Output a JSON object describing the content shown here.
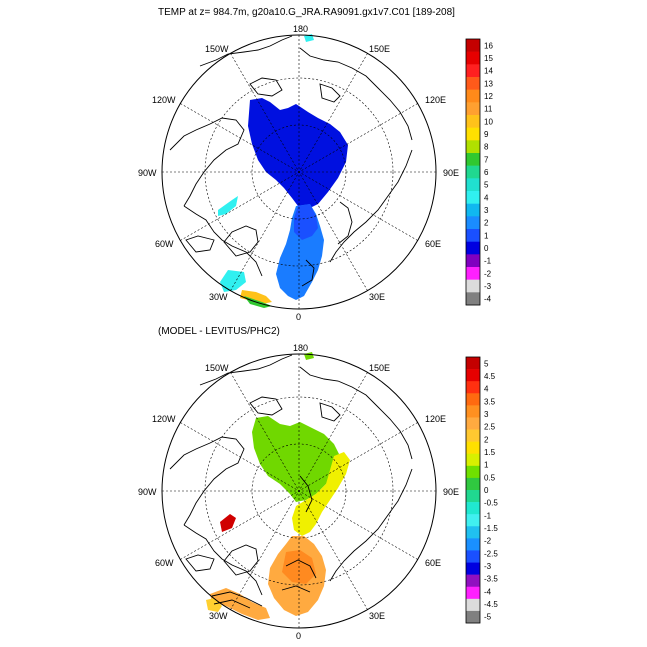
{
  "top_panel": {
    "title": "TEMP at z= 984.7m, g20a10.G_JRA.RA9091.gx1v7.C01 [189-208]",
    "lon_labels": {
      "top": "180",
      "bottom": "0",
      "left": "90W",
      "right": "90E",
      "ul1": "150W",
      "ur1": "150E",
      "ul2": "120W",
      "ur2": "120E",
      "ll1": "60W",
      "lr1": "60E",
      "ll2": "30W",
      "lr2": "30E"
    },
    "colorbar": {
      "labels": [
        "16",
        "15",
        "14",
        "13",
        "12",
        "11",
        "10",
        "9",
        "8",
        "7",
        "6",
        "5",
        "4",
        "3",
        "2",
        "1",
        "0",
        "-1",
        "-2",
        "-3",
        "-4"
      ],
      "colors": [
        "#c40000",
        "#e60000",
        "#ff2020",
        "#ff5a1a",
        "#ff8a1a",
        "#ffa030",
        "#ffc21a",
        "#ffe000",
        "#b0e000",
        "#30c830",
        "#20d890",
        "#20e0d0",
        "#30f0f0",
        "#10b8f0",
        "#1a8cff",
        "#1a50ff",
        "#0000e0",
        "#8000c0",
        "#ff20ff",
        "#dcdcdc",
        "#808080"
      ]
    }
  },
  "bottom_panel": {
    "title": "(MODEL - LEVITUS/PHC2)",
    "lon_labels": {
      "top": "180",
      "bottom": "0",
      "left": "90W",
      "right": "90E",
      "ul1": "150W",
      "ur1": "150E",
      "ul2": "120W",
      "ur2": "120E",
      "ll1": "60W",
      "lr1": "60E",
      "ll2": "30W",
      "lr2": "30E"
    },
    "colorbar": {
      "labels": [
        "5",
        "4.5",
        "4",
        "3.5",
        "3",
        "2.5",
        "2",
        "1.5",
        "1",
        "0.5",
        "0",
        "-0.5",
        "-1",
        "-1.5",
        "-2",
        "-2.5",
        "-3",
        "-3.5",
        "-4",
        "-4.5",
        "-5"
      ],
      "colors": [
        "#c40000",
        "#e60000",
        "#ff3010",
        "#ff6a10",
        "#ff9020",
        "#ffaa40",
        "#ffc830",
        "#ffe000",
        "#d8f000",
        "#70e000",
        "#30c840",
        "#20d890",
        "#20e8d0",
        "#40f0f0",
        "#20c0f0",
        "#1a90ff",
        "#1a50ff",
        "#0000e0",
        "#9010c0",
        "#ff20ff",
        "#dcdcdc",
        "#808080"
      ]
    }
  }
}
